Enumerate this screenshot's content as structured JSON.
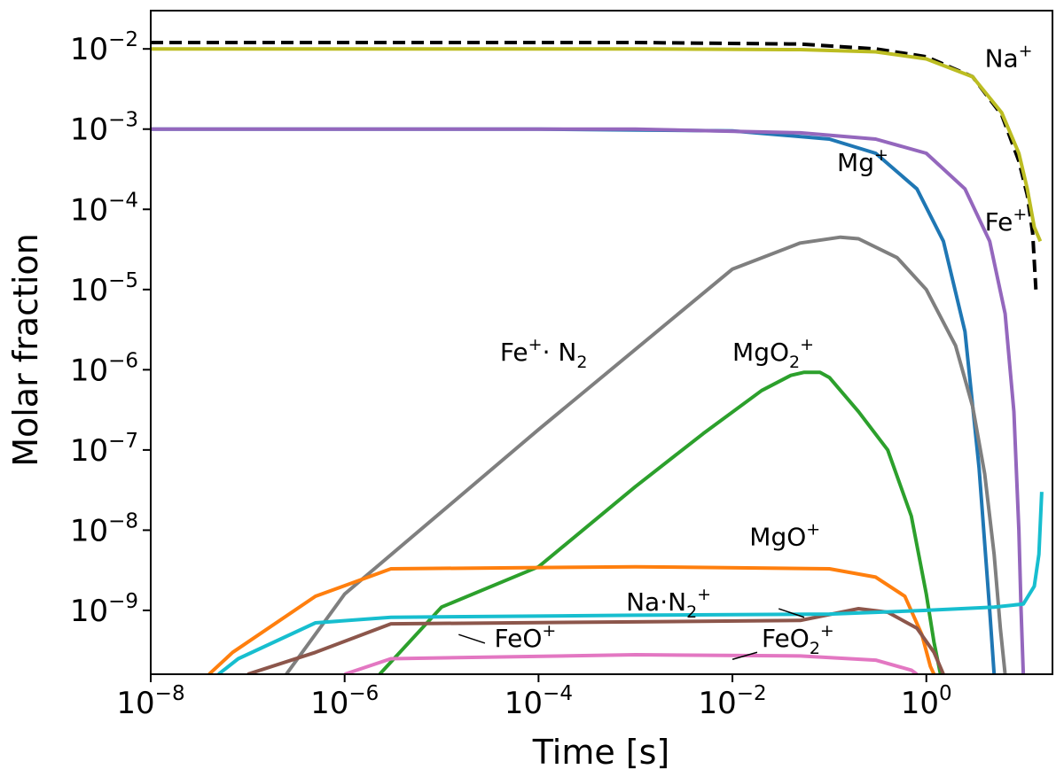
{
  "chart_data": {
    "type": "line",
    "xlabel": "Time [s]",
    "ylabel": "Molar fraction",
    "xscale": "log",
    "yscale": "log",
    "xlim": [
      1e-08,
      20
    ],
    "ylim": [
      1.6e-10,
      0.03
    ],
    "grid": false,
    "x_ticks": [
      {
        "base": "10",
        "exp": "−8",
        "value": 1e-08
      },
      {
        "base": "10",
        "exp": "−6",
        "value": 1e-06
      },
      {
        "base": "10",
        "exp": "−4",
        "value": 0.0001
      },
      {
        "base": "10",
        "exp": "−2",
        "value": 0.01
      },
      {
        "base": "10",
        "exp": "0",
        "value": 1
      }
    ],
    "y_ticks": [
      {
        "base": "10",
        "exp": "−2",
        "value": 0.01
      },
      {
        "base": "10",
        "exp": "−3",
        "value": 0.001
      },
      {
        "base": "10",
        "exp": "−4",
        "value": 0.0001
      },
      {
        "base": "10",
        "exp": "−5",
        "value": 1e-05
      },
      {
        "base": "10",
        "exp": "−6",
        "value": 1e-06
      },
      {
        "base": "10",
        "exp": "−7",
        "value": 1e-07
      },
      {
        "base": "10",
        "exp": "−8",
        "value": 1e-08
      },
      {
        "base": "10",
        "exp": "−9",
        "value": 1e-09
      }
    ],
    "series": [
      {
        "id": "total",
        "color": "#000000",
        "dashed": true,
        "points": [
          [
            1e-08,
            0.012
          ],
          [
            0.001,
            0.012
          ],
          [
            0.05,
            0.0115
          ],
          [
            0.3,
            0.01
          ],
          [
            1,
            0.008
          ],
          [
            3,
            0.0045
          ],
          [
            6,
            0.0015
          ],
          [
            9,
            0.0004
          ],
          [
            11,
            0.00015
          ],
          [
            12.5,
            5e-05
          ],
          [
            13.5,
            1e-05
          ]
        ]
      },
      {
        "id": "Na+",
        "color": "#bcbd22",
        "points": [
          [
            1e-08,
            0.01
          ],
          [
            0.001,
            0.01
          ],
          [
            0.05,
            0.0098
          ],
          [
            0.3,
            0.0092
          ],
          [
            1,
            0.0075
          ],
          [
            3,
            0.0045
          ],
          [
            6,
            0.0016
          ],
          [
            9,
            0.0005
          ],
          [
            11,
            0.00018
          ],
          [
            13,
            6e-05
          ],
          [
            15,
            4e-05
          ]
        ]
      },
      {
        "id": "Mg+",
        "color": "#1f77b4",
        "points": [
          [
            1e-08,
            0.001
          ],
          [
            0.0001,
            0.001
          ],
          [
            0.01,
            0.00095
          ],
          [
            0.1,
            0.00075
          ],
          [
            0.3,
            0.0005
          ],
          [
            0.8,
            0.00018
          ],
          [
            1.5,
            4e-05
          ],
          [
            2.5,
            3e-06
          ],
          [
            3.5,
            6e-08
          ],
          [
            4.5,
            1e-09
          ],
          [
            5,
            1.6e-10
          ]
        ]
      },
      {
        "id": "Fe+",
        "color": "#9467bd",
        "points": [
          [
            1e-08,
            0.001
          ],
          [
            0.001,
            0.001
          ],
          [
            0.05,
            0.0009
          ],
          [
            0.3,
            0.00075
          ],
          [
            1,
            0.0005
          ],
          [
            2.5,
            0.00018
          ],
          [
            4.5,
            4e-05
          ],
          [
            6.5,
            5e-06
          ],
          [
            8,
            3e-07
          ],
          [
            9,
            1e-08
          ],
          [
            9.5,
            1e-09
          ],
          [
            10,
            1.6e-10
          ]
        ]
      },
      {
        "id": "Fe+.N2",
        "color": "#7f7f7f",
        "points": [
          [
            2.5e-07,
            1.6e-10
          ],
          [
            1e-06,
            1.6e-09
          ],
          [
            0.0001,
            1.8e-07
          ],
          [
            0.01,
            1.8e-05
          ],
          [
            0.05,
            3.8e-05
          ],
          [
            0.13,
            4.5e-05
          ],
          [
            0.2,
            4.3e-05
          ],
          [
            0.5,
            2.5e-05
          ],
          [
            1,
            1e-05
          ],
          [
            2,
            2e-06
          ],
          [
            3,
            3.5e-07
          ],
          [
            4,
            5e-08
          ],
          [
            5,
            5e-09
          ],
          [
            5.8,
            6e-10
          ],
          [
            6.5,
            1.6e-10
          ]
        ]
      },
      {
        "id": "MgO2+",
        "color": "#2ca02c",
        "points": [
          [
            2.3e-06,
            1.6e-10
          ],
          [
            1e-05,
            1.1e-09
          ],
          [
            0.0001,
            3.5e-09
          ],
          [
            0.001,
            3.5e-08
          ],
          [
            0.005,
            1.6e-07
          ],
          [
            0.02,
            5.5e-07
          ],
          [
            0.04,
            8.5e-07
          ],
          [
            0.055,
            9.3e-07
          ],
          [
            0.08,
            9.3e-07
          ],
          [
            0.1,
            8e-07
          ],
          [
            0.2,
            3e-07
          ],
          [
            0.4,
            1e-07
          ],
          [
            0.7,
            1.5e-08
          ],
          [
            1.0,
            1.6e-09
          ],
          [
            1.2,
            4e-10
          ],
          [
            1.4,
            1.6e-10
          ]
        ]
      },
      {
        "id": "MgO+",
        "color": "#ff7f0e",
        "points": [
          [
            4e-08,
            1.6e-10
          ],
          [
            7e-08,
            3e-10
          ],
          [
            5e-07,
            1.5e-09
          ],
          [
            3e-06,
            3.3e-09
          ],
          [
            0.001,
            3.5e-09
          ],
          [
            0.1,
            3.3e-09
          ],
          [
            0.3,
            2.6e-09
          ],
          [
            0.6,
            1.5e-09
          ],
          [
            0.9,
            5e-10
          ],
          [
            1.1,
            2e-10
          ],
          [
            1.2,
            1.6e-10
          ]
        ]
      },
      {
        "id": "FeO+",
        "color": "#8c564b",
        "points": [
          [
            1e-07,
            1.6e-10
          ],
          [
            5e-07,
            3e-10
          ],
          [
            3e-06,
            6.8e-10
          ],
          [
            0.001,
            7.2e-10
          ],
          [
            0.05,
            7.5e-10
          ],
          [
            0.2,
            1.05e-09
          ],
          [
            0.4,
            9.5e-10
          ],
          [
            0.8,
            6e-10
          ],
          [
            1.2,
            3e-10
          ],
          [
            1.5,
            1.6e-10
          ]
        ]
      },
      {
        "id": "FeO2+",
        "color": "#e377c2",
        "points": [
          [
            1e-06,
            1.6e-10
          ],
          [
            3e-06,
            2.5e-10
          ],
          [
            0.001,
            2.8e-10
          ],
          [
            0.05,
            2.7e-10
          ],
          [
            0.3,
            2.4e-10
          ],
          [
            0.7,
            1.8e-10
          ],
          [
            0.8,
            1.6e-10
          ]
        ]
      },
      {
        "id": "Na.N2+",
        "color": "#17becf",
        "points": [
          [
            5e-08,
            1.6e-10
          ],
          [
            8e-08,
            2.5e-10
          ],
          [
            5e-07,
            7e-10
          ],
          [
            3e-06,
            8.2e-10
          ],
          [
            0.001,
            8.7e-10
          ],
          [
            0.1,
            9e-10
          ],
          [
            1,
            1e-09
          ],
          [
            5,
            1.1e-09
          ],
          [
            10,
            1.2e-09
          ],
          [
            13,
            2e-09
          ],
          [
            14.5,
            5e-09
          ],
          [
            15.5,
            3e-08
          ]
        ]
      }
    ],
    "labels": [
      {
        "id": "Na+",
        "base": "Na",
        "sup": "+",
        "sub": "",
        "tail_sup": "",
        "x": 4.0,
        "y": 0.006,
        "leader": null
      },
      {
        "id": "Mg+",
        "base": "Mg",
        "sup": "+",
        "sub": "",
        "tail_sup": "",
        "x": 0.12,
        "y": 0.0003,
        "leader": null
      },
      {
        "id": "Fe+",
        "base": "Fe",
        "sup": "+",
        "sub": "",
        "tail_sup": "",
        "x": 4.0,
        "y": 5.5e-05,
        "leader": null
      },
      {
        "id": "Fe+.N2",
        "base": "Fe",
        "sup": "+",
        "sub": "2",
        "mid": "· N",
        "tail_sup": "",
        "x": 4e-05,
        "y": 1.3e-06,
        "leader": null
      },
      {
        "id": "MgO2+",
        "base": "MgO",
        "sup": "",
        "sub": "2",
        "tail_sup": "+",
        "x": 0.01,
        "y": 1.3e-06,
        "leader": null
      },
      {
        "id": "MgO+",
        "base": "MgO",
        "sup": "+",
        "sub": "",
        "tail_sup": "",
        "x": 0.015,
        "y": 6.5e-09,
        "leader": null
      },
      {
        "id": "Na.N2+",
        "base": "Na·N",
        "sup": "",
        "sub": "2",
        "tail_sup": "+",
        "x": 0.0008,
        "y": 1e-09,
        "leader": [
          [
            0.03,
            1.05e-09
          ],
          [
            0.055,
            8.2e-10
          ]
        ]
      },
      {
        "id": "FeO+",
        "base": "FeO",
        "sup": "+",
        "sub": "",
        "tail_sup": "",
        "x": 3.5e-05,
        "y": 3.5e-10,
        "leader": [
          [
            1.5e-05,
            5e-10
          ],
          [
            2.8e-05,
            3.9e-10
          ]
        ]
      },
      {
        "id": "FeO2+",
        "base": "FeO",
        "sup": "",
        "sub": "2",
        "tail_sup": "+",
        "x": 0.02,
        "y": 3.5e-10,
        "leader": [
          [
            0.018,
            3e-10
          ],
          [
            0.01,
            2.45e-10
          ]
        ]
      }
    ]
  }
}
